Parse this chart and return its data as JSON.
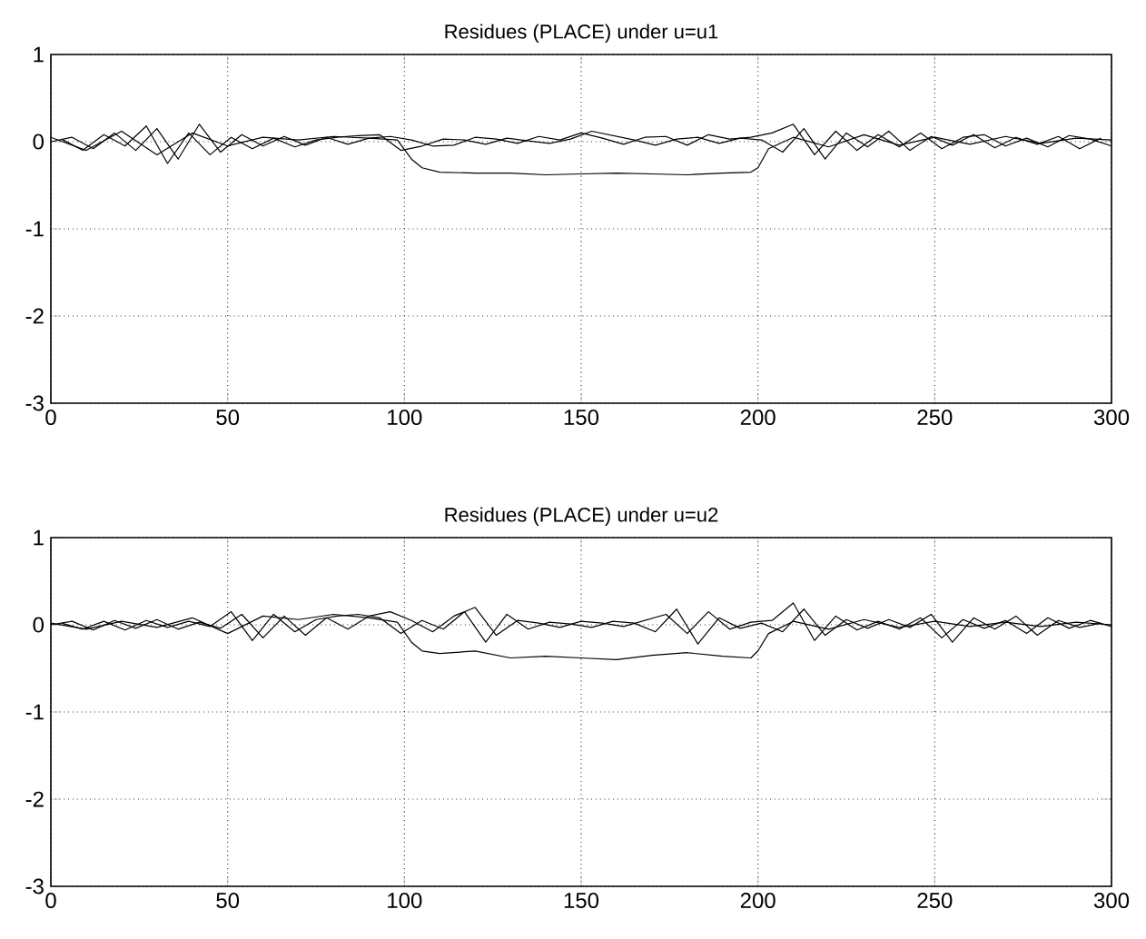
{
  "chart_data": [
    {
      "type": "line",
      "title": "Residues (PLACE) under u=u1",
      "xlim": [
        0,
        300
      ],
      "ylim": [
        -3,
        1
      ],
      "xticks": [
        0,
        50,
        100,
        150,
        200,
        250,
        300
      ],
      "yticks": [
        -3,
        -2,
        -1,
        0,
        1
      ],
      "grid": true,
      "series": [
        {
          "color": "#000000",
          "x": [
            0,
            6,
            12,
            18,
            24,
            30,
            36,
            42,
            48,
            54,
            60,
            66,
            72,
            78,
            84,
            90,
            96,
            102,
            108,
            114,
            120,
            126,
            132,
            138,
            144,
            150,
            156,
            162,
            168,
            174,
            180,
            186,
            192,
            198,
            204,
            210,
            216,
            222,
            228,
            234,
            240,
            246,
            252,
            258,
            264,
            270,
            276,
            282,
            288,
            294,
            300
          ],
          "values": [
            0,
            0.05,
            -0.08,
            0.1,
            -0.1,
            0.15,
            -0.2,
            0.2,
            -0.12,
            0.08,
            -0.05,
            0.06,
            -0.04,
            0.05,
            -0.03,
            0.04,
            0.06,
            0.02,
            -0.05,
            -0.04,
            0.05,
            0.03,
            -0.02,
            0.06,
            0.02,
            0.1,
            0.04,
            -0.03,
            0.05,
            0.06,
            -0.04,
            0.08,
            0.03,
            0.05,
            0.1,
            0.2,
            -0.15,
            0.12,
            -0.1,
            0.08,
            -0.06,
            0.1,
            -0.08,
            0.05,
            0.08,
            -0.05,
            0.04,
            -0.06,
            0.07,
            0.03,
            -0.05
          ]
        },
        {
          "color": "#000000",
          "x": [
            3,
            9,
            15,
            21,
            27,
            33,
            39,
            45,
            51,
            57,
            63,
            69,
            75,
            81,
            87,
            93,
            99,
            105,
            111,
            117,
            123,
            129,
            135,
            141,
            147,
            153,
            159,
            165,
            171,
            177,
            183,
            189,
            195,
            201,
            207,
            213,
            219,
            225,
            231,
            237,
            243,
            249,
            255,
            261,
            267,
            273,
            279,
            285,
            291,
            297
          ],
          "values": [
            0.03,
            -0.1,
            0.08,
            -0.05,
            0.18,
            -0.25,
            0.1,
            -0.15,
            0.05,
            -0.08,
            0.04,
            -0.06,
            0.02,
            0.05,
            0.07,
            0.08,
            -0.1,
            -0.05,
            0.03,
            0.02,
            -0.03,
            0.04,
            0.01,
            -0.02,
            0.03,
            0.12,
            0.07,
            0.02,
            -0.04,
            0.03,
            0.05,
            -0.02,
            0.04,
            0.02,
            -0.12,
            0.15,
            -0.2,
            0.1,
            -0.06,
            0.12,
            -0.1,
            0.06,
            -0.04,
            0.08,
            -0.07,
            0.05,
            -0.03,
            0.06,
            -0.08,
            0.04
          ]
        },
        {
          "color": "#000000",
          "x": [
            0,
            10,
            20,
            30,
            40,
            50,
            60,
            70,
            80,
            90,
            98,
            102,
            105,
            110,
            120,
            130,
            140,
            150,
            160,
            170,
            180,
            190,
            198,
            200,
            203,
            210,
            220,
            230,
            240,
            250,
            260,
            270,
            280,
            290,
            300
          ],
          "values": [
            0.05,
            -0.1,
            0.12,
            -0.15,
            0.1,
            -0.05,
            0.05,
            0.02,
            0.06,
            0.04,
            0.02,
            -0.2,
            -0.3,
            -0.35,
            -0.36,
            -0.36,
            -0.38,
            -0.37,
            -0.36,
            -0.37,
            -0.38,
            -0.36,
            -0.35,
            -0.3,
            -0.08,
            0.05,
            -0.06,
            0.08,
            -0.04,
            0.05,
            -0.03,
            0.06,
            -0.02,
            0.04,
            0.02
          ]
        }
      ]
    },
    {
      "type": "line",
      "title": "Residues (PLACE) under u=u2",
      "xlim": [
        0,
        300
      ],
      "ylim": [
        -3,
        1
      ],
      "xticks": [
        0,
        50,
        100,
        150,
        200,
        250,
        300
      ],
      "yticks": [
        -3,
        -2,
        -1,
        0,
        1
      ],
      "grid": true,
      "series": [
        {
          "color": "#000000",
          "x": [
            0,
            6,
            12,
            18,
            24,
            30,
            36,
            42,
            48,
            54,
            60,
            66,
            72,
            78,
            84,
            90,
            96,
            102,
            108,
            114,
            120,
            126,
            132,
            138,
            144,
            150,
            156,
            162,
            168,
            174,
            180,
            186,
            192,
            198,
            204,
            210,
            216,
            222,
            228,
            234,
            240,
            246,
            252,
            258,
            264,
            270,
            276,
            282,
            288,
            294,
            300
          ],
          "values": [
            0,
            0.04,
            -0.06,
            0.05,
            -0.04,
            0.06,
            -0.05,
            0.03,
            -0.04,
            0.12,
            -0.15,
            0.1,
            -0.12,
            0.08,
            -0.05,
            0.1,
            0.15,
            0.05,
            -0.08,
            0.1,
            0.2,
            -0.12,
            0.05,
            0.02,
            -0.03,
            0.04,
            0.02,
            -0.02,
            0.05,
            0.12,
            -0.1,
            0.15,
            -0.05,
            0.03,
            0.05,
            0.25,
            -0.18,
            0.1,
            -0.06,
            0.04,
            -0.05,
            0.08,
            -0.15,
            0.06,
            -0.04,
            0.05,
            -0.1,
            0.08,
            -0.04,
            0.05,
            -0.02
          ]
        },
        {
          "color": "#000000",
          "x": [
            3,
            9,
            15,
            21,
            27,
            33,
            39,
            45,
            51,
            57,
            63,
            69,
            75,
            81,
            87,
            93,
            99,
            105,
            111,
            117,
            123,
            129,
            135,
            141,
            147,
            153,
            159,
            165,
            171,
            177,
            183,
            189,
            195,
            201,
            207,
            213,
            219,
            225,
            231,
            237,
            243,
            249,
            255,
            261,
            267,
            273,
            279,
            285,
            291,
            297
          ],
          "values": [
            0.02,
            -0.05,
            0.04,
            -0.06,
            0.05,
            -0.03,
            0.04,
            -0.02,
            0.15,
            -0.18,
            0.12,
            -0.08,
            0.06,
            0.1,
            0.12,
            0.08,
            -0.1,
            0.05,
            -0.05,
            0.15,
            -0.2,
            0.12,
            -0.05,
            0.03,
            0.01,
            -0.03,
            0.04,
            0.02,
            -0.08,
            0.18,
            -0.22,
            0.08,
            -0.04,
            0.02,
            -0.08,
            0.18,
            -0.12,
            0.06,
            -0.04,
            0.06,
            -0.03,
            0.12,
            -0.2,
            0.08,
            -0.05,
            0.1,
            -0.12,
            0.05,
            -0.03,
            0.02
          ]
        },
        {
          "color": "#000000",
          "x": [
            0,
            10,
            20,
            30,
            40,
            50,
            60,
            70,
            80,
            90,
            98,
            102,
            105,
            110,
            120,
            130,
            140,
            150,
            160,
            170,
            180,
            190,
            198,
            200,
            203,
            210,
            220,
            230,
            240,
            250,
            260,
            270,
            280,
            290,
            300
          ],
          "values": [
            0.02,
            -0.05,
            0.04,
            -0.03,
            0.08,
            -0.1,
            0.1,
            0.06,
            0.12,
            0.08,
            0.03,
            -0.2,
            -0.3,
            -0.33,
            -0.3,
            -0.38,
            -0.36,
            -0.38,
            -0.4,
            -0.35,
            -0.32,
            -0.36,
            -0.38,
            -0.3,
            -0.1,
            0.04,
            -0.05,
            0.06,
            -0.03,
            0.04,
            -0.02,
            0.03,
            -0.02,
            0.03,
            0.0
          ]
        }
      ]
    }
  ]
}
